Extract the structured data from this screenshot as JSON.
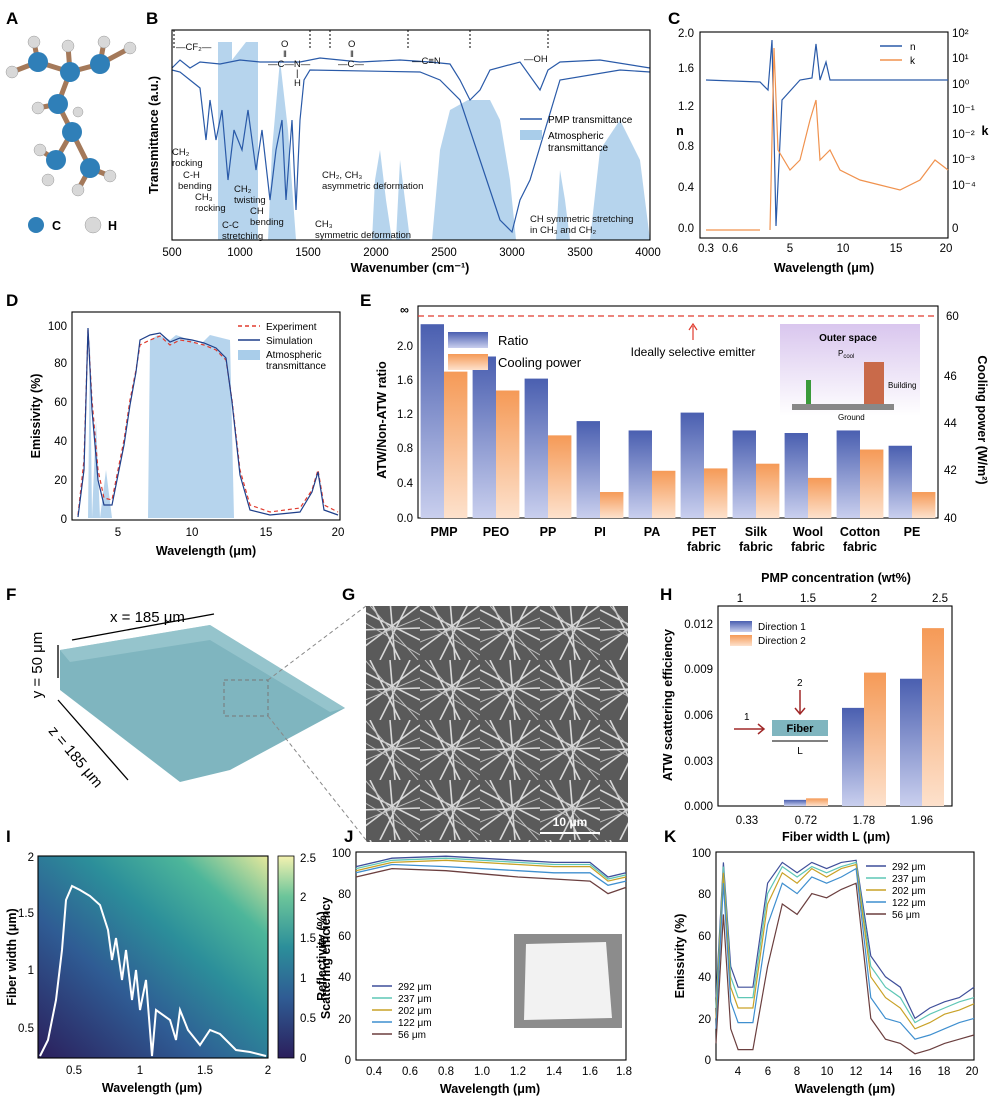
{
  "panels": {
    "A": "A",
    "B": "B",
    "C": "C",
    "D": "D",
    "E": "E",
    "F": "F",
    "G": "G",
    "H": "H",
    "I": "I",
    "J": "J",
    "K": "K"
  },
  "colors": {
    "blue": "#2a5aa8",
    "orange": "#f0924e",
    "atw": "#a9cdea",
    "teal": "#7fb5bf",
    "navy": "#1f3f8a",
    "red": "#e03b2e"
  },
  "panelA": {
    "carbon": "C",
    "hydrogen": "H"
  },
  "panelB": {
    "ylabel": "Transmittance (a.u.)",
    "xlabel": "Wavenumber (cm⁻¹)",
    "xticks": [
      "500",
      "1000",
      "1500",
      "2000",
      "2500",
      "3000",
      "3500",
      "4000"
    ],
    "legend": [
      "PMP transmittance",
      "Atmospheric",
      "transmittance"
    ],
    "groups": [
      "—CF₂—",
      "O",
      "‖",
      "—C—N—",
      "|",
      "H",
      "O",
      "‖",
      "—C—",
      "—C≡N",
      "—OH"
    ],
    "annotations": [
      "CH₂",
      "rocking",
      "C-H",
      "bending",
      "CH₃",
      "rocking",
      "CH₂",
      "twisting",
      "CH",
      "bending",
      "C-C",
      "stretching",
      "CH₃",
      "symmetric deformation",
      "CH₂, CH₃",
      "asymmetric deformation",
      "CH symmetric stretching",
      "in CH₃ and CH₂"
    ]
  },
  "panelC": {
    "ylabel_left": "n",
    "ylabel_right": "k",
    "xlabel": "Wavelength (μm)",
    "xticks": [
      "0.3",
      "0.6",
      "5",
      "10",
      "15",
      "20"
    ],
    "yticks_left": [
      "0.0",
      "0.4",
      "0.8",
      "1.2",
      "1.6",
      "2.0"
    ],
    "yticks_right": [
      "10²",
      "10¹",
      "10⁰",
      "10⁻¹",
      "10⁻²",
      "10⁻³",
      "10⁻⁴",
      "0"
    ],
    "legend": [
      "n",
      "k"
    ]
  },
  "panelD": {
    "ylabel": "Emissivity (%)",
    "xlabel": "Wavelength (μm)",
    "xticks": [
      "5",
      "10",
      "15",
      "20"
    ],
    "yticks": [
      "0",
      "20",
      "40",
      "60",
      "80",
      "100"
    ],
    "legend": [
      "Experiment",
      "Simulation",
      "Atmospheric",
      "transmittance"
    ]
  },
  "panelE": {
    "ylabel_left": "ATW/Non-ATW ratio",
    "ylabel_right": "Cooling power (W/m²)",
    "legend": [
      "Ratio",
      "Cooling power"
    ],
    "ideal_label": "Ideally selective emitter",
    "ideal_value": "60",
    "infinity": "∞",
    "inset": {
      "space": "Outer space",
      "pcool": "P",
      "pcool_sub": "cool",
      "building": "Building",
      "ground": "Ground"
    },
    "yticks_left": [
      "0.0",
      "0.4",
      "0.8",
      "1.2",
      "1.6",
      "2.0"
    ],
    "yticks_right": [
      "40",
      "42",
      "44",
      "46"
    ],
    "category_lines": [
      [
        "PMP"
      ],
      [
        "PEO"
      ],
      [
        "PP"
      ],
      [
        "PI"
      ],
      [
        "PA"
      ],
      [
        "PET",
        "fabric"
      ],
      [
        "Silk",
        "fabric"
      ],
      [
        "Wool",
        "fabric"
      ],
      [
        "Cotton",
        "fabric"
      ],
      [
        "PE"
      ]
    ]
  },
  "panelF": {
    "x_label": "x = 185 μm",
    "y_label": "y = 50 μm",
    "z_label": "z = 185 μm"
  },
  "panelG": {
    "scale": "10 μm"
  },
  "panelH": {
    "top_label": "PMP concentration (wt%)",
    "top_ticks": [
      "1",
      "1.5",
      "2",
      "2.5"
    ],
    "ylabel": "ATW scattering efficiency",
    "xlabel": "Fiber width L (μm)",
    "yticks": [
      "0.000",
      "0.003",
      "0.006",
      "0.009",
      "0.012"
    ],
    "legend": [
      "Direction 1",
      "Direction 2"
    ],
    "inset": {
      "fiber": "Fiber",
      "length": "L",
      "dir1": "1",
      "dir2": "2"
    }
  },
  "panelI": {
    "ylabel": "Fiber width (μm)",
    "xlabel": "Wavelength (μm)",
    "cbar_label": "Scattering efficiency",
    "xticks": [
      "0.5",
      "1",
      "1.5",
      "2"
    ],
    "yticks": [
      "0.5",
      "1",
      "1.5",
      "2"
    ],
    "cbar_ticks": [
      "0",
      "0.5",
      "1",
      "1.5",
      "2",
      "2.5"
    ]
  },
  "panelJ": {
    "ylabel": "Reflectivity (%)",
    "xlabel": "Wavelength (μm)",
    "xticks": [
      "0.4",
      "0.6",
      "0.8",
      "1.0",
      "1.2",
      "1.4",
      "1.6",
      "1.8"
    ],
    "yticks": [
      "0",
      "20",
      "40",
      "60",
      "80",
      "100"
    ]
  },
  "panelK": {
    "ylabel": "Emissivity (%)",
    "xlabel": "Wavelength (μm)",
    "xticks": [
      "4",
      "6",
      "8",
      "10",
      "12",
      "14",
      "16",
      "18",
      "20"
    ],
    "yticks": [
      "0",
      "20",
      "40",
      "60",
      "80",
      "100"
    ]
  },
  "thickness_legend": [
    "292 μm",
    "237 μm",
    "202 μm",
    "122 μm",
    "56 μm"
  ],
  "thickness_colors": [
    "#3f4f9a",
    "#5fc7b6",
    "#c9a227",
    "#3f8fcf",
    "#6b3f3f"
  ],
  "chart_data": [
    {
      "panel": "B",
      "type": "line",
      "title": "",
      "xlabel": "Wavenumber (cm⁻¹)",
      "ylabel": "Transmittance (a.u.)",
      "xlim": [
        500,
        4000
      ],
      "series": [
        {
          "name": "PMP transmittance",
          "x": [
            500,
            600,
            700,
            800,
            900,
            1000,
            1100,
            1200,
            1300,
            1380,
            1460,
            1500,
            1700,
            2000,
            2500,
            2700,
            2850,
            2900,
            2950,
            3000,
            3200,
            3500,
            4000
          ],
          "y": [
            0.82,
            0.74,
            0.6,
            0.45,
            0.55,
            0.62,
            0.6,
            0.5,
            0.4,
            0.2,
            0.05,
            0.8,
            0.85,
            0.86,
            0.72,
            0.6,
            0.3,
            0.05,
            0.04,
            0.12,
            0.78,
            0.82,
            0.83
          ]
        },
        {
          "name": "Atmospheric transmittance",
          "regions": [
            [
              800,
              1300
            ],
            [
              1900,
              2150
            ],
            [
              2450,
              3000
            ],
            [
              3450,
              3550
            ]
          ]
        }
      ]
    },
    {
      "panel": "C",
      "type": "line",
      "xlabel": "Wavelength (μm)",
      "ylabel": "n",
      "y2label": "k",
      "ylim": [
        0,
        2
      ],
      "series": [
        {
          "name": "n",
          "x": [
            0.3,
            0.6,
            3.3,
            3.4,
            5,
            7,
            10,
            15,
            20
          ],
          "y": [
            1.51,
            1.5,
            1.7,
            1.2,
            1.52,
            1.55,
            1.5,
            1.5,
            1.5
          ]
        },
        {
          "name": "k",
          "x": [
            0.3,
            0.6,
            3.3,
            3.4,
            5,
            7,
            10,
            15,
            20
          ],
          "y": [
            0,
            0,
            0,
            0.1,
            0.003,
            0.02,
            0.001,
            0.0002,
            0.001
          ]
        }
      ]
    },
    {
      "panel": "D",
      "type": "line",
      "xlabel": "Wavelength (μm)",
      "ylabel": "Emissivity (%)",
      "xlim": [
        2.5,
        20
      ],
      "ylim": [
        0,
        105
      ],
      "series": [
        {
          "name": "Experiment",
          "x": [
            2.5,
            3.3,
            4,
            5,
            6,
            7,
            8,
            9,
            10,
            11,
            12,
            13,
            14,
            15,
            16,
            17,
            18,
            19,
            20
          ],
          "y": [
            45,
            98,
            40,
            10,
            60,
            95,
            90,
            95,
            90,
            92,
            88,
            80,
            20,
            12,
            12,
            15,
            28,
            20,
            10
          ]
        },
        {
          "name": "Simulation",
          "x": [
            2.5,
            3.3,
            4,
            5,
            6,
            7,
            8,
            9,
            10,
            11,
            12,
            13,
            14,
            15,
            16,
            17,
            18,
            19,
            20
          ],
          "y": [
            10,
            99,
            35,
            8,
            55,
            96,
            92,
            96,
            93,
            94,
            90,
            82,
            18,
            8,
            8,
            12,
            30,
            18,
            8
          ]
        }
      ]
    },
    {
      "panel": "E",
      "type": "bar",
      "categories": [
        "PMP",
        "PEO",
        "PP",
        "PI",
        "PA",
        "PET fabric",
        "Silk fabric",
        "Wool fabric",
        "Cotton fabric",
        "PE"
      ],
      "series": [
        {
          "name": "Ratio",
          "values": [
            2.28,
            1.9,
            1.64,
            1.14,
            1.03,
            1.24,
            1.03,
            1.0,
            1.03,
            0.85
          ]
        },
        {
          "name": "Cooling power",
          "values": [
            46.2,
            45.4,
            43.5,
            41.1,
            42.0,
            42.1,
            42.3,
            41.7,
            42.9,
            41.1
          ]
        }
      ],
      "ylim": [
        0,
        2.4
      ],
      "y2lim": [
        40,
        48
      ],
      "reference": {
        "name": "Ideally selective emitter",
        "value": 60
      }
    },
    {
      "panel": "H",
      "type": "bar",
      "categories": [
        "0.33",
        "0.72",
        "1.78",
        "1.96"
      ],
      "series": [
        {
          "name": "Direction 1",
          "values": [
            0.0,
            0.0004,
            0.0064,
            0.0083
          ]
        },
        {
          "name": "Direction 2",
          "values": [
            0.0,
            0.0005,
            0.0087,
            0.0116
          ]
        }
      ],
      "ylim": [
        0,
        0.013
      ]
    },
    {
      "panel": "I",
      "type": "heatmap",
      "xlabel": "Wavelength (μm)",
      "ylabel": "Fiber width (μm)",
      "xlim": [
        0.25,
        2
      ],
      "ylim": [
        0.3,
        2
      ],
      "zlim": [
        0,
        2.5
      ]
    },
    {
      "panel": "J",
      "type": "line",
      "xlabel": "Wavelength (μm)",
      "ylabel": "Reflectivity (%)",
      "xlim": [
        0.3,
        1.8
      ],
      "ylim": [
        0,
        100
      ],
      "series": [
        {
          "name": "292 μm",
          "x": [
            0.3,
            0.5,
            0.8,
            1.2,
            1.4,
            1.6,
            1.7,
            1.8
          ],
          "y": [
            93,
            97,
            98,
            96,
            95,
            95,
            88,
            90
          ]
        },
        {
          "name": "237 μm",
          "x": [
            0.3,
            0.5,
            0.8,
            1.2,
            1.4,
            1.6,
            1.7,
            1.8
          ],
          "y": [
            92,
            96,
            97,
            95,
            94,
            94,
            87,
            89
          ]
        },
        {
          "name": "202 μm",
          "x": [
            0.3,
            0.5,
            0.8,
            1.2,
            1.4,
            1.6,
            1.7,
            1.8
          ],
          "y": [
            91,
            95,
            96,
            94,
            93,
            93,
            86,
            88
          ]
        },
        {
          "name": "122 μm",
          "x": [
            0.3,
            0.5,
            0.8,
            1.2,
            1.4,
            1.6,
            1.7,
            1.8
          ],
          "y": [
            90,
            94,
            93,
            91,
            90,
            90,
            84,
            86
          ]
        },
        {
          "name": "56 μm",
          "x": [
            0.3,
            0.5,
            0.8,
            1.2,
            1.4,
            1.6,
            1.7,
            1.8
          ],
          "y": [
            88,
            92,
            91,
            88,
            87,
            86,
            80,
            83
          ]
        }
      ]
    },
    {
      "panel": "K",
      "type": "line",
      "xlabel": "Wavelength (μm)",
      "ylabel": "Emissivity (%)",
      "xlim": [
        2.5,
        20
      ],
      "ylim": [
        0,
        100
      ],
      "x": [
        2.5,
        3,
        3.5,
        4,
        5,
        6,
        7,
        8,
        9,
        10,
        11,
        12,
        13,
        14,
        15,
        16,
        17,
        18,
        19,
        20
      ],
      "series": [
        {
          "name": "292 μm",
          "y": [
            30,
            95,
            45,
            35,
            35,
            85,
            95,
            90,
            95,
            92,
            95,
            96,
            50,
            40,
            35,
            20,
            25,
            28,
            30,
            35
          ]
        },
        {
          "name": "237 μm",
          "y": [
            25,
            93,
            40,
            30,
            30,
            80,
            93,
            88,
            93,
            90,
            93,
            95,
            45,
            35,
            30,
            18,
            22,
            25,
            28,
            30
          ]
        },
        {
          "name": "202 μm",
          "y": [
            20,
            90,
            35,
            25,
            25,
            75,
            90,
            85,
            92,
            88,
            92,
            94,
            40,
            30,
            25,
            15,
            18,
            22,
            24,
            27
          ]
        },
        {
          "name": "122 μm",
          "y": [
            15,
            85,
            28,
            18,
            18,
            65,
            85,
            80,
            88,
            85,
            88,
            92,
            30,
            20,
            18,
            10,
            12,
            15,
            18,
            20
          ]
        },
        {
          "name": "56 μm",
          "y": [
            8,
            70,
            15,
            5,
            5,
            45,
            75,
            70,
            80,
            78,
            82,
            85,
            20,
            10,
            8,
            3,
            5,
            8,
            10,
            12
          ]
        }
      ]
    }
  ]
}
